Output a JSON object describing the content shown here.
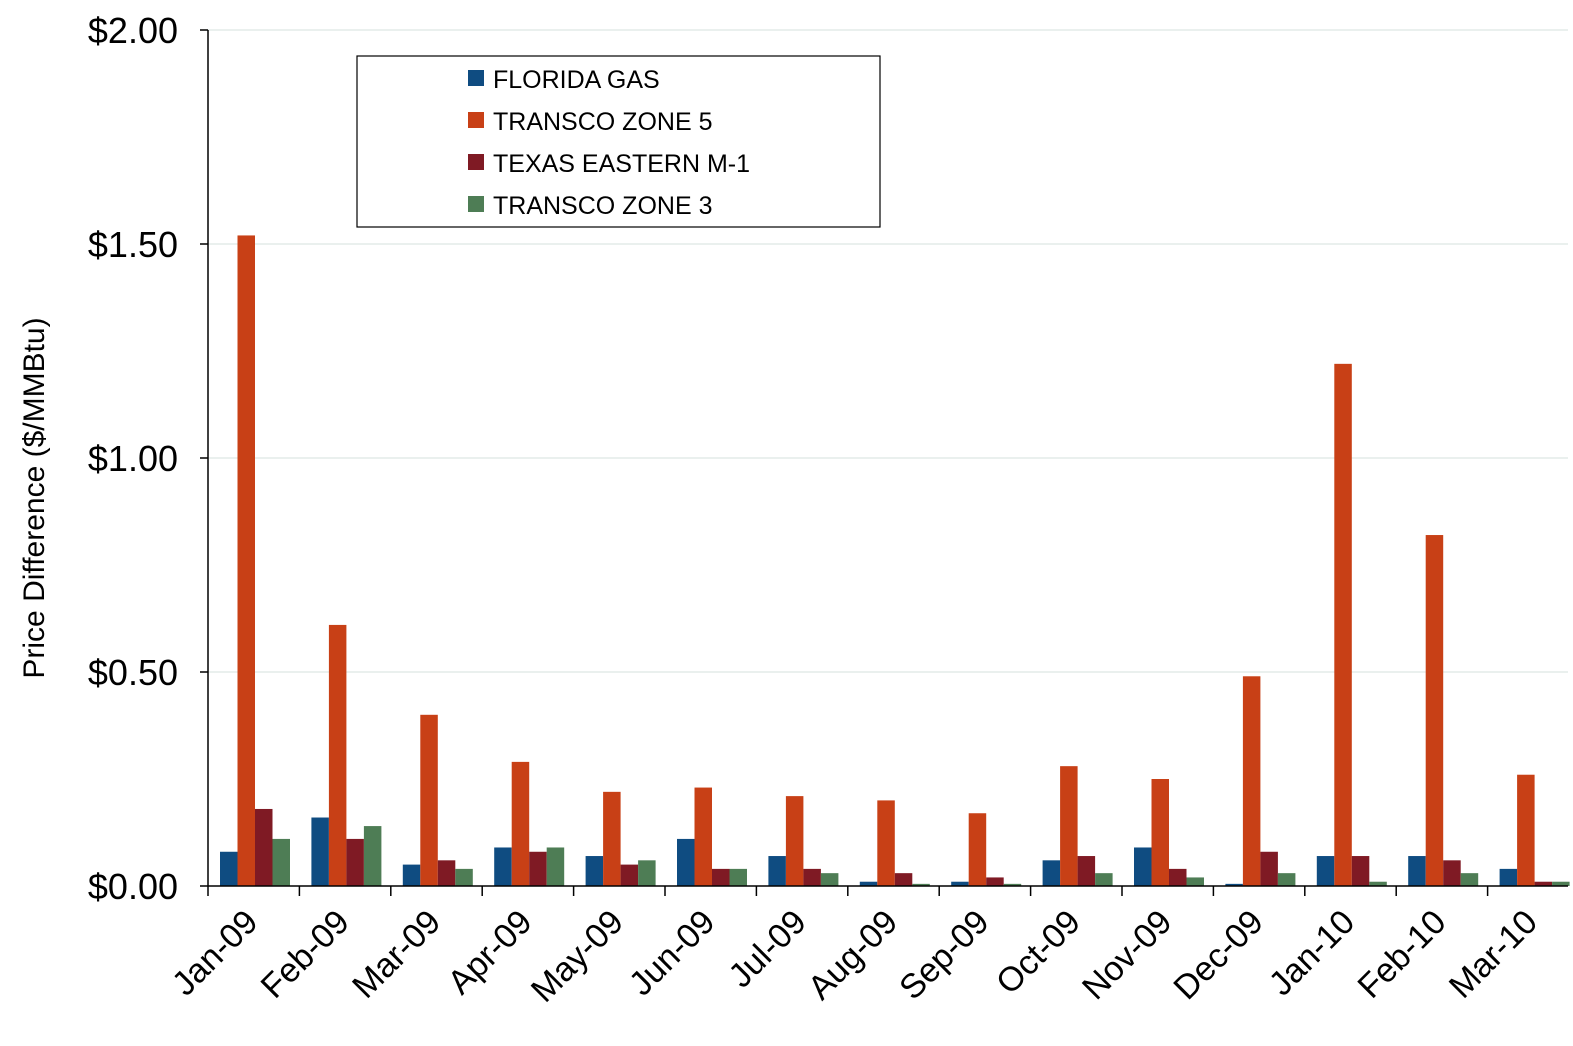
{
  "chart_data": {
    "type": "bar",
    "ylabel": "Price Difference  ($/MMBtu)",
    "xlabel": "",
    "ylim": [
      0,
      2
    ],
    "yticks": [
      "$0.00",
      "$0.50",
      "$1.00",
      "$1.50",
      "$2.00"
    ],
    "grid": true,
    "legend_position": "top-left",
    "categories": [
      "Jan-09",
      "Feb-09",
      "Mar-09",
      "Apr-09",
      "May-09",
      "Jun-09",
      "Jul-09",
      "Aug-09",
      "Sep-09",
      "Oct-09",
      "Nov-09",
      "Dec-09",
      "Jan-10",
      "Feb-10",
      "Mar-10"
    ],
    "series": [
      {
        "name": "FLORIDA GAS",
        "color": "#0f4c81",
        "values": [
          0.08,
          0.16,
          0.05,
          0.09,
          0.07,
          0.11,
          0.07,
          0.01,
          0.01,
          0.06,
          0.09,
          0.005,
          0.07,
          0.07,
          0.04
        ]
      },
      {
        "name": "TRANSCO ZONE 5",
        "color": "#c84016",
        "values": [
          1.52,
          0.61,
          0.4,
          0.29,
          0.22,
          0.23,
          0.21,
          0.2,
          0.17,
          0.28,
          0.25,
          0.49,
          1.22,
          0.82,
          0.26
        ]
      },
      {
        "name": "TEXAS EASTERN M-1",
        "color": "#7f1a24",
        "values": [
          0.18,
          0.11,
          0.06,
          0.08,
          0.05,
          0.04,
          0.04,
          0.03,
          0.02,
          0.07,
          0.04,
          0.08,
          0.07,
          0.06,
          0.01
        ]
      },
      {
        "name": "TRANSCO ZONE 3",
        "color": "#4e7d55",
        "values": [
          0.11,
          0.14,
          0.04,
          0.09,
          0.06,
          0.04,
          0.03,
          0.005,
          0.005,
          0.03,
          0.02,
          0.03,
          0.01,
          0.03,
          0.01
        ]
      }
    ]
  }
}
